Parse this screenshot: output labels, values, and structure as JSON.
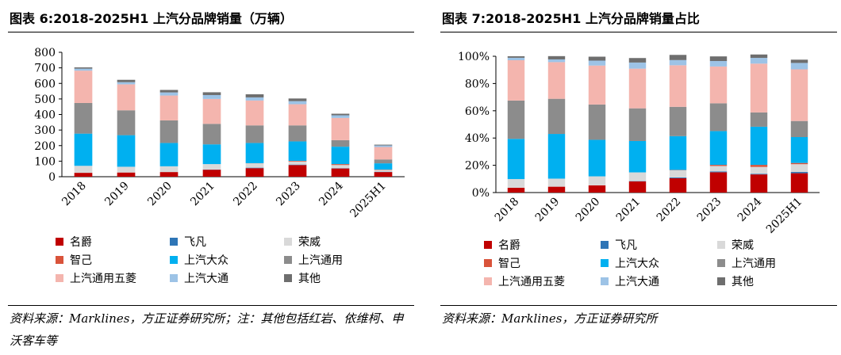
{
  "left": {
    "title": "图表 6:2018-2025H1 上汽分品牌销量（万辆）",
    "source": "资料来源：Marklines，方正证券研究所；注：其他包括红岩、依维柯、申沃客车等"
  },
  "right": {
    "title": "图表 7:2018-2025H1 上汽分品牌销量占比",
    "source": "资料来源：Marklines，方正证券研究所"
  },
  "colors": {
    "名爵": "#c00000",
    "飞凡": "#2e75b6",
    "荣威": "#d9d9d9",
    "智己": "#d9533a",
    "上汽大众": "#00b0f0",
    "上汽通用": "#8c8c8c",
    "上汽通用五菱": "#f4b5ae",
    "上汽大通": "#9dc3e6",
    "其他": "#6e6e6e"
  },
  "chart_data": [
    {
      "type": "bar",
      "stacked": true,
      "categories": [
        "2018",
        "2019",
        "2020",
        "2021",
        "2022",
        "2023",
        "2024",
        "2025H1"
      ],
      "ylim": [
        0,
        800
      ],
      "yticks": [
        "0",
        "100",
        "200",
        "300",
        "400",
        "500",
        "600",
        "700",
        "800"
      ],
      "series": [
        {
          "name": "名爵",
          "values": [
            25,
            27,
            30,
            45,
            55,
            75,
            53,
            30
          ]
        },
        {
          "name": "飞凡",
          "values": [
            0,
            0,
            0,
            1,
            3,
            3,
            2,
            2
          ]
        },
        {
          "name": "荣威",
          "values": [
            45,
            37,
            37,
            35,
            28,
            20,
            20,
            12
          ]
        },
        {
          "name": "智己",
          "values": [
            0,
            0,
            0,
            0,
            1,
            4,
            6,
            2
          ]
        },
        {
          "name": "上汽大众",
          "values": [
            207,
            203,
            150,
            127,
            130,
            125,
            112,
            40
          ]
        },
        {
          "name": "上汽通用",
          "values": [
            197,
            160,
            145,
            132,
            113,
            103,
            42,
            25
          ]
        },
        {
          "name": "上汽通用五菱",
          "values": [
            208,
            167,
            160,
            160,
            160,
            136,
            143,
            80
          ]
        },
        {
          "name": "上汽大通",
          "values": [
            13,
            14,
            20,
            25,
            20,
            20,
            17,
            10
          ]
        },
        {
          "name": "其他",
          "values": [
            8,
            15,
            16,
            18,
            20,
            17,
            10,
            5
          ]
        }
      ]
    },
    {
      "type": "bar",
      "stacked": true,
      "categories": [
        "2018",
        "2019",
        "2020",
        "2021",
        "2022",
        "2023",
        "2024",
        "2025H1"
      ],
      "ylim": [
        0,
        100
      ],
      "yticks": [
        "0%",
        "20%",
        "40%",
        "60%",
        "80%",
        "100%"
      ],
      "series": [
        {
          "name": "名爵",
          "values": [
            3.5,
            4.3,
            5.3,
            8.2,
            10.5,
            14.9,
            13.3,
            14.2
          ]
        },
        {
          "name": "飞凡",
          "values": [
            0,
            0,
            0,
            0.2,
            0.6,
            0.6,
            0.5,
            0.9
          ]
        },
        {
          "name": "荣威",
          "values": [
            6.4,
            5.9,
            6.6,
            6.4,
            5.3,
            4.0,
            5.0,
            5.7
          ]
        },
        {
          "name": "智己",
          "values": [
            0,
            0,
            0,
            0,
            0.2,
            0.8,
            1.5,
            0.9
          ]
        },
        {
          "name": "上汽大众",
          "values": [
            29.5,
            32.8,
            26.8,
            23.0,
            24.8,
            24.8,
            28.0,
            19.0
          ]
        },
        {
          "name": "上汽通用",
          "values": [
            28.1,
            25.8,
            25.9,
            24.0,
            21.5,
            20.4,
            10.5,
            11.8
          ]
        },
        {
          "name": "上汽通用五菱",
          "values": [
            29.6,
            26.9,
            28.6,
            29.1,
            30.5,
            27.0,
            35.8,
            37.9
          ]
        },
        {
          "name": "上汽大通",
          "values": [
            1.8,
            2.0,
            3.6,
            4.5,
            3.8,
            4.0,
            4.2,
            4.7
          ]
        },
        {
          "name": "其他",
          "values": [
            1.1,
            2.4,
            2.9,
            3.3,
            3.8,
            3.4,
            2.5,
            2.4
          ]
        }
      ]
    }
  ]
}
